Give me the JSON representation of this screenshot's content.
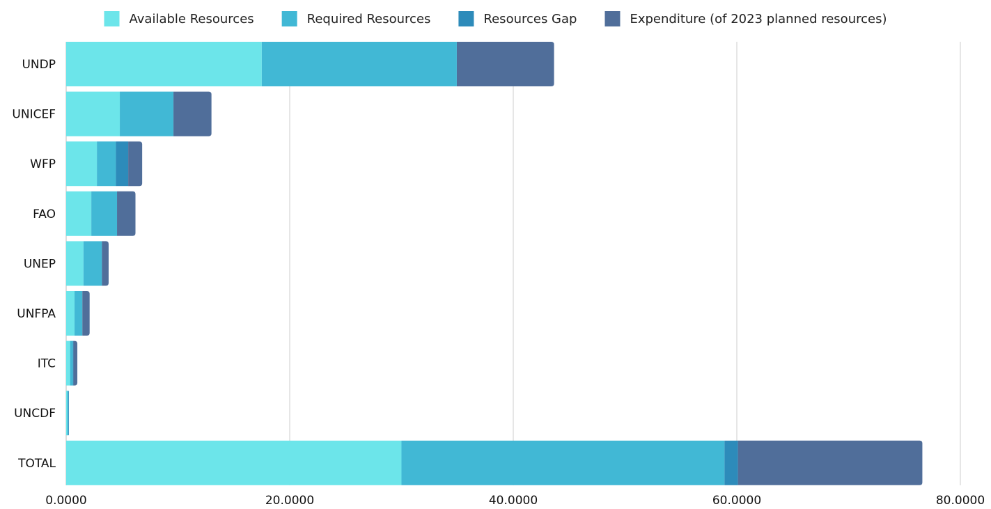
{
  "chart_data": {
    "type": "bar",
    "orientation": "horizontal",
    "stacked": true,
    "categories": [
      "UNDP",
      "UNICEF",
      "WFP",
      "FAO",
      "UNEP",
      "UNFPA",
      "ITC",
      "UNCDF",
      "TOTAL"
    ],
    "series": [
      {
        "name": "Available Resources",
        "color": "#6ce5ea",
        "values": [
          17.5,
          4.8,
          2.75,
          2.25,
          1.55,
          0.75,
          0.35,
          0.1,
          30.0
        ]
      },
      {
        "name": "Required Resources",
        "color": "#41b8d5",
        "values": [
          17.45,
          4.8,
          1.7,
          2.3,
          1.65,
          0.7,
          0.25,
          0.1,
          28.9
        ]
      },
      {
        "name": "Resources Gap",
        "color": "#2d8bba",
        "values": [
          0.0,
          0.0,
          1.1,
          0.0,
          0.0,
          0.0,
          0.05,
          0.05,
          1.2
        ]
      },
      {
        "name": "Expenditure (of 2023 planned resources)",
        "color": "#506e9a",
        "values": [
          8.7,
          3.4,
          1.25,
          1.65,
          0.6,
          0.65,
          0.35,
          0.0,
          16.5
        ]
      }
    ],
    "xlim": [
      0,
      80
    ],
    "xticks": [
      "0.0000",
      "20.0000",
      "40.0000",
      "60.0000",
      "80.0000"
    ],
    "grid": true,
    "legend_position": "top"
  }
}
